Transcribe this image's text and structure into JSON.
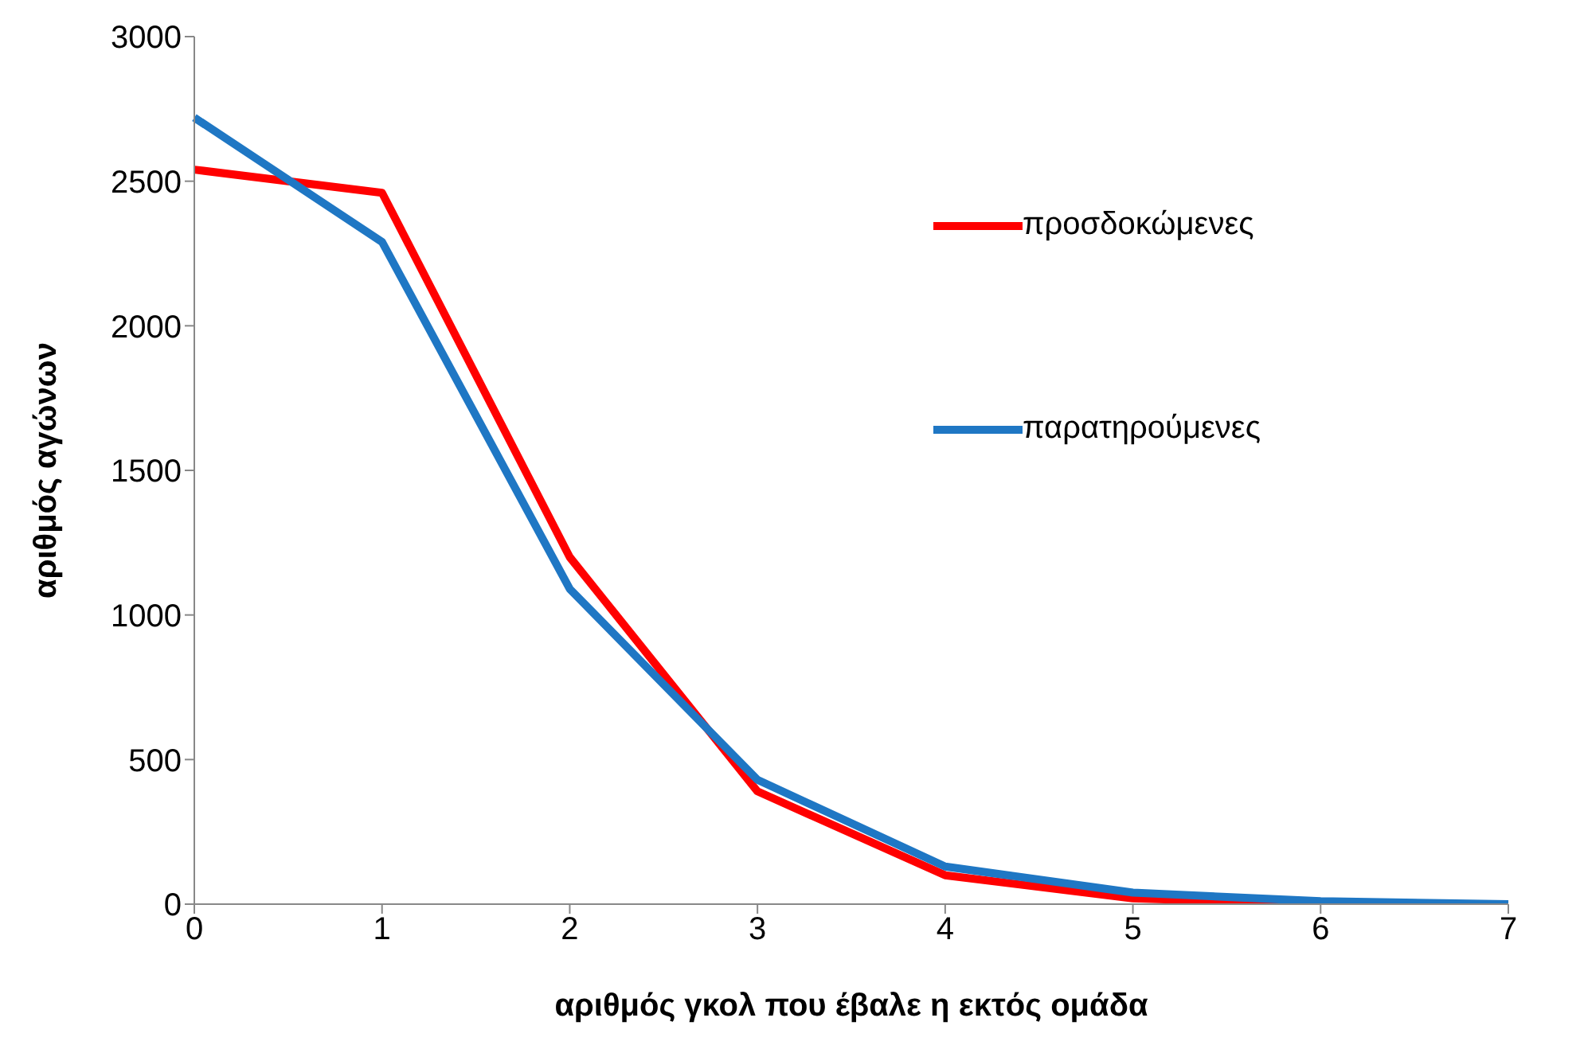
{
  "chart_data": {
    "type": "line",
    "xlabel": "αριθμός γκολ που έβαλε η εκτός ομάδα",
    "ylabel": "αριθμός αγώνων",
    "categories": [
      "0",
      "1",
      "2",
      "3",
      "4",
      "5",
      "6",
      "7"
    ],
    "series": [
      {
        "name": "προσδοκώμενες",
        "color": "#ff0000",
        "values": [
          2540,
          2460,
          1200,
          390,
          100,
          20,
          0,
          0
        ]
      },
      {
        "name": "παρατηρούμενες",
        "color": "#1f77c4",
        "values": [
          2720,
          2290,
          1090,
          430,
          130,
          40,
          10,
          0
        ]
      }
    ],
    "ylim": [
      0,
      3000
    ],
    "yticks": [
      0,
      500,
      1000,
      1500,
      2000,
      2500,
      3000
    ],
    "grid": false,
    "legend": "top right",
    "marker": "none",
    "line_style": "solid"
  }
}
